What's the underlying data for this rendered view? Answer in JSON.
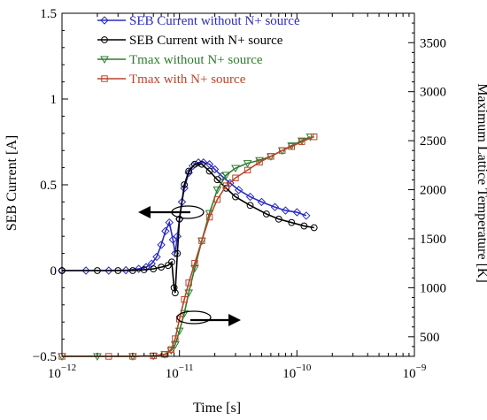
{
  "chart_data": {
    "type": "line",
    "xlabel": "Time [s]",
    "ylabel_left": "SEB Current [A]",
    "ylabel_right": "Maximum Lattice Temperature [K]",
    "x_scale": "log",
    "xlim": [
      1e-12,
      1e-09
    ],
    "ylim_left": [
      -0.5,
      1.5
    ],
    "ylim_right": [
      300,
      3800
    ],
    "x_ticks": [
      {
        "value": 1e-12,
        "base": "10",
        "exp": "−12"
      },
      {
        "value": 1e-11,
        "base": "10",
        "exp": "−11"
      },
      {
        "value": 1e-10,
        "base": "10",
        "exp": "−10"
      },
      {
        "value": 1e-09,
        "base": "10",
        "exp": "−9"
      }
    ],
    "y_left_ticks": [
      {
        "value": -0.5,
        "label": "−0.5"
      },
      {
        "value": 0,
        "label": "0"
      },
      {
        "value": 0.5,
        "label": "0.5"
      },
      {
        "value": 1,
        "label": "1"
      },
      {
        "value": 1.5,
        "label": "1.5"
      }
    ],
    "y_right_ticks": [
      {
        "value": 500,
        "label": "500"
      },
      {
        "value": 1000,
        "label": "1000"
      },
      {
        "value": 1500,
        "label": "1500"
      },
      {
        "value": 2000,
        "label": "2000"
      },
      {
        "value": 2500,
        "label": "2500"
      },
      {
        "value": 3000,
        "label": "3000"
      },
      {
        "value": 3500,
        "label": "3500"
      }
    ],
    "legend_position": "top-left",
    "series": [
      {
        "name": "SEB Current without N+ source",
        "axis": "left",
        "color": "#2b2bbf",
        "marker": "diamond",
        "points": [
          [
            1e-12,
            0
          ],
          [
            1.6e-12,
            0
          ],
          [
            2.5e-12,
            0
          ],
          [
            3.5e-12,
            0.002
          ],
          [
            4.5e-12,
            0.01
          ],
          [
            5.2e-12,
            0.02
          ],
          [
            5.8e-12,
            0.04
          ],
          [
            6.4e-12,
            0.08
          ],
          [
            7e-12,
            0.15
          ],
          [
            7.6e-12,
            0.23
          ],
          [
            8.2e-12,
            0.28
          ],
          [
            8.8e-12,
            0.18
          ],
          [
            9.2e-12,
            0.1
          ],
          [
            9.6e-12,
            0.2
          ],
          [
            1e-11,
            0.3
          ],
          [
            1.05e-11,
            0.4
          ],
          [
            1.1e-11,
            0.48
          ],
          [
            1.2e-11,
            0.57
          ],
          [
            1.3e-11,
            0.61
          ],
          [
            1.45e-11,
            0.63
          ],
          [
            1.6e-11,
            0.63
          ],
          [
            1.8e-11,
            0.62
          ],
          [
            2e-11,
            0.59
          ],
          [
            2.3e-11,
            0.55
          ],
          [
            2.7e-11,
            0.51
          ],
          [
            3.2e-11,
            0.47
          ],
          [
            4e-11,
            0.43
          ],
          [
            5e-11,
            0.4
          ],
          [
            6.5e-11,
            0.37
          ],
          [
            8e-11,
            0.35
          ],
          [
            1e-10,
            0.34
          ],
          [
            1.2e-10,
            0.32
          ]
        ]
      },
      {
        "name": "SEB Current with N+ source",
        "axis": "left",
        "color": "#000000",
        "marker": "circle",
        "points": [
          [
            1e-12,
            0
          ],
          [
            2e-12,
            0
          ],
          [
            3e-12,
            0
          ],
          [
            4e-12,
            0
          ],
          [
            5e-12,
            0.005
          ],
          [
            6e-12,
            0.01
          ],
          [
            7e-12,
            0.02
          ],
          [
            8e-12,
            0.03
          ],
          [
            8.6e-12,
            0.05
          ],
          [
            9e-12,
            -0.1
          ],
          [
            9.2e-12,
            -0.13
          ],
          [
            9.6e-12,
            0.1
          ],
          [
            1e-11,
            0.3
          ],
          [
            1.1e-11,
            0.5
          ],
          [
            1.2e-11,
            0.58
          ],
          [
            1.35e-11,
            0.62
          ],
          [
            1.55e-11,
            0.62
          ],
          [
            1.8e-11,
            0.58
          ],
          [
            2.1e-11,
            0.53
          ],
          [
            2.5e-11,
            0.48
          ],
          [
            3e-11,
            0.43
          ],
          [
            4e-11,
            0.38
          ],
          [
            5.5e-11,
            0.33
          ],
          [
            7e-11,
            0.3
          ],
          [
            9e-11,
            0.28
          ],
          [
            1.15e-10,
            0.26
          ],
          [
            1.4e-10,
            0.25
          ]
        ]
      },
      {
        "name": "Tmax without N+ source",
        "axis": "right",
        "color": "#2e7d2e",
        "marker": "triangle-down",
        "points": [
          [
            1e-12,
            300
          ],
          [
            2e-12,
            300
          ],
          [
            4e-12,
            300
          ],
          [
            6e-12,
            305
          ],
          [
            7.5e-12,
            320
          ],
          [
            8.5e-12,
            360
          ],
          [
            9.2e-12,
            420
          ],
          [
            1e-11,
            560
          ],
          [
            1.1e-11,
            740
          ],
          [
            1.2e-11,
            950
          ],
          [
            1.35e-11,
            1200
          ],
          [
            1.55e-11,
            1480
          ],
          [
            1.8e-11,
            1760
          ],
          [
            2.1e-11,
            2000
          ],
          [
            2.5e-11,
            2150
          ],
          [
            3e-11,
            2220
          ],
          [
            3.8e-11,
            2270
          ],
          [
            4.8e-11,
            2300
          ],
          [
            6e-11,
            2340
          ],
          [
            7.5e-11,
            2400
          ],
          [
            9e-11,
            2450
          ],
          [
            1.1e-10,
            2500
          ],
          [
            1.3e-10,
            2540
          ]
        ]
      },
      {
        "name": "Tmax with N+ source",
        "axis": "right",
        "color": "#b8452a",
        "marker": "square",
        "points": [
          [
            1e-12,
            300
          ],
          [
            2.5e-12,
            300
          ],
          [
            4e-12,
            300
          ],
          [
            6e-12,
            305
          ],
          [
            7.5e-12,
            320
          ],
          [
            8.5e-12,
            370
          ],
          [
            9.2e-12,
            480
          ],
          [
            1e-11,
            680
          ],
          [
            1.1e-11,
            880
          ],
          [
            1.2e-11,
            1050
          ],
          [
            1.35e-11,
            1250
          ],
          [
            1.55e-11,
            1480
          ],
          [
            1.8e-11,
            1720
          ],
          [
            2.1e-11,
            1900
          ],
          [
            2.5e-11,
            2040
          ],
          [
            3e-11,
            2120
          ],
          [
            3.8e-11,
            2200
          ],
          [
            4.8e-11,
            2280
          ],
          [
            6e-11,
            2340
          ],
          [
            7.5e-11,
            2400
          ],
          [
            9e-11,
            2440
          ],
          [
            1.1e-10,
            2490
          ],
          [
            1.4e-10,
            2540
          ]
        ]
      }
    ]
  }
}
